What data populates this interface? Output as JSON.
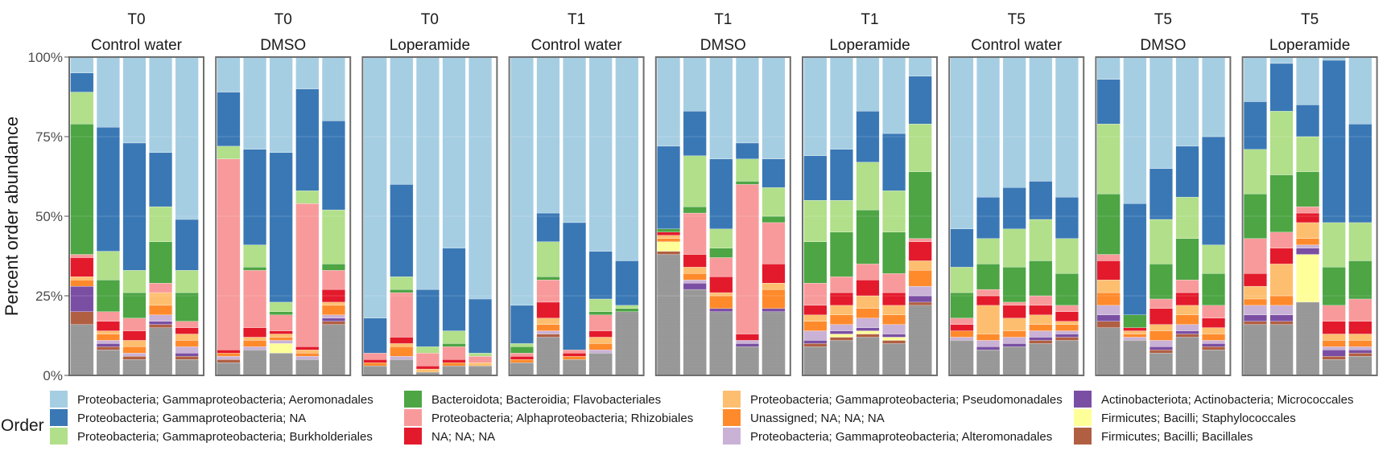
{
  "chart_data": {
    "type": "bar",
    "stacked": true,
    "ylabel": "Percent order abundance",
    "ylim": [
      0,
      100
    ],
    "y_ticks": [
      "0%",
      "25%",
      "50%",
      "75%",
      "100%"
    ],
    "y_tick_values": [
      0,
      25,
      50,
      75,
      100
    ],
    "legend_title": "Order",
    "legend_position": "bottom",
    "grid": true,
    "orders": [
      {
        "name": "Proteobacteria; Gammaproteobacteria; Aeromonadales",
        "color": "#a6cee3"
      },
      {
        "name": "Proteobacteria; Gammaproteobacteria; NA",
        "color": "#3a78b5"
      },
      {
        "name": "Proteobacteria; Gammaproteobacteria; Burkholderiales",
        "color": "#b2df8a"
      },
      {
        "name": "Bacteroidota; Bacteroidia; Flavobacteriales",
        "color": "#4da544"
      },
      {
        "name": "Proteobacteria; Alphaproteobacteria; Rhizobiales",
        "color": "#f89a9b"
      },
      {
        "name": "NA; NA; NA",
        "color": "#e31a2c"
      },
      {
        "name": "Proteobacteria; Gammaproteobacteria; Pseudomonadales",
        "color": "#fdbf6f"
      },
      {
        "name": "Unassigned; NA; NA; NA",
        "color": "#ff8a2c"
      },
      {
        "name": "Proteobacteria; Gammaproteobacteria; Alteromonadales",
        "color": "#cab2d6"
      },
      {
        "name": "Actinobacteriota; Actinobacteria; Micrococcales",
        "color": "#7a4fa3"
      },
      {
        "name": "Firmicutes; Bacilli; Staphylococcales",
        "color": "#ffff99"
      },
      {
        "name": "Firmicutes; Bacilli; Bacillales",
        "color": "#b15f43"
      }
    ],
    "other_color": "#9a9a9a",
    "facets": [
      {
        "time": "T0",
        "treatment": "Control water",
        "samples": [
          [
            5,
            6,
            10,
            41,
            1,
            6,
            1,
            2,
            0,
            8,
            0,
            4
          ],
          [
            22,
            39,
            9,
            10,
            3,
            3,
            1,
            2,
            1,
            1,
            0,
            1
          ],
          [
            27,
            40,
            7,
            8,
            4,
            3,
            2,
            2,
            1,
            0,
            0,
            1
          ],
          [
            30,
            17,
            11,
            13,
            3,
            0,
            4,
            3,
            2,
            1,
            0,
            1
          ],
          [
            51,
            16,
            7,
            9,
            2,
            2,
            2,
            2,
            2,
            1,
            0,
            1
          ]
        ]
      },
      {
        "time": "T0",
        "treatment": "DMSO",
        "samples": [
          [
            11,
            17,
            4,
            0,
            60,
            1,
            0,
            1,
            1,
            0,
            0,
            1
          ],
          [
            29,
            30,
            7,
            1,
            18,
            3,
            1,
            2,
            1,
            0,
            0,
            0
          ],
          [
            30,
            47,
            3,
            1,
            5,
            1,
            1,
            1,
            1,
            0,
            3,
            0
          ],
          [
            10,
            32,
            4,
            0,
            45,
            1,
            1,
            1,
            1,
            0,
            0,
            0
          ],
          [
            20,
            28,
            17,
            2,
            6,
            4,
            1,
            3,
            1,
            1,
            0,
            1
          ]
        ]
      },
      {
        "time": "T0",
        "treatment": "Loperamide",
        "samples": [
          [
            82,
            11,
            0,
            0,
            2,
            1,
            0,
            1,
            0,
            0,
            0,
            0
          ],
          [
            40,
            29,
            4,
            1,
            14,
            2,
            1,
            3,
            1,
            0,
            0,
            0
          ],
          [
            73,
            18,
            2,
            0,
            4,
            1,
            1,
            0,
            0,
            0,
            0,
            0
          ],
          [
            60,
            26,
            4,
            1,
            4,
            1,
            0,
            1,
            0,
            0,
            0,
            0
          ],
          [
            76,
            17,
            1,
            0,
            2,
            0,
            1,
            0,
            0,
            0,
            0,
            0
          ]
        ]
      },
      {
        "time": "T1",
        "treatment": "Control water",
        "samples": [
          [
            78,
            12,
            1,
            2,
            1,
            1,
            0,
            1,
            0,
            0,
            0,
            0
          ],
          [
            49,
            9,
            11,
            1,
            7,
            5,
            2,
            2,
            1,
            0,
            0,
            1
          ],
          [
            52,
            40,
            0,
            0,
            1,
            1,
            0,
            1,
            0,
            0,
            0,
            0
          ],
          [
            61,
            15,
            4,
            1,
            5,
            2,
            2,
            2,
            1,
            0,
            0,
            0
          ],
          [
            64,
            14,
            1,
            1,
            0,
            0,
            0,
            0,
            0,
            0,
            0,
            0
          ]
        ]
      },
      {
        "time": "T1",
        "treatment": "DMSO",
        "samples": [
          [
            28,
            26,
            0,
            1,
            0,
            1,
            1,
            1,
            0,
            0,
            3,
            1
          ],
          [
            17,
            14,
            16,
            2,
            13,
            4,
            2,
            2,
            1,
            2,
            0,
            0
          ],
          [
            32,
            22,
            6,
            3,
            6,
            5,
            1,
            4,
            0,
            1,
            0,
            0
          ],
          [
            27,
            5,
            7,
            1,
            47,
            2,
            0,
            0,
            1,
            1,
            0,
            0
          ],
          [
            32,
            9,
            9,
            2,
            13,
            6,
            2,
            6,
            0,
            1,
            0,
            0
          ]
        ]
      },
      {
        "time": "T1",
        "treatment": "Loperamide",
        "samples": [
          [
            31,
            14,
            13,
            13,
            7,
            3,
            2,
            3,
            3,
            1,
            0,
            1
          ],
          [
            29,
            16,
            10,
            14,
            5,
            4,
            3,
            3,
            2,
            1,
            1,
            1
          ],
          [
            17,
            16,
            15,
            17,
            5,
            5,
            4,
            3,
            3,
            1,
            1,
            1
          ],
          [
            24,
            18,
            13,
            13,
            6,
            4,
            3,
            3,
            3,
            1,
            1,
            1
          ],
          [
            6,
            15,
            15,
            21,
            1,
            6,
            3,
            5,
            3,
            2,
            0,
            1
          ]
        ]
      },
      {
        "time": "T5",
        "treatment": "Control water",
        "samples": [
          [
            54,
            12,
            8,
            8,
            2,
            2,
            0,
            2,
            1,
            0,
            0,
            0
          ],
          [
            44,
            13,
            8,
            8,
            2,
            3,
            9,
            2,
            2,
            1,
            0,
            0
          ],
          [
            41,
            13,
            12,
            11,
            1,
            4,
            4,
            2,
            2,
            1,
            0,
            0
          ],
          [
            39,
            12,
            13,
            11,
            3,
            3,
            3,
            2,
            2,
            1,
            0,
            1
          ],
          [
            44,
            13,
            11,
            10,
            2,
            3,
            1,
            2,
            1,
            1,
            0,
            1
          ]
        ]
      },
      {
        "time": "T5",
        "treatment": "DMSO",
        "samples": [
          [
            7,
            14,
            22,
            19,
            2,
            6,
            4,
            4,
            3,
            2,
            0,
            2
          ],
          [
            46,
            35,
            0,
            4,
            0,
            1,
            1,
            1,
            1,
            0,
            0,
            0
          ],
          [
            35,
            16,
            14,
            11,
            3,
            5,
            2,
            3,
            2,
            1,
            0,
            1
          ],
          [
            28,
            16,
            13,
            13,
            4,
            4,
            3,
            3,
            2,
            1,
            0,
            1
          ],
          [
            25,
            34,
            9,
            10,
            4,
            3,
            2,
            2,
            1,
            1,
            0,
            1
          ]
        ]
      },
      {
        "time": "T5",
        "treatment": "Loperamide",
        "samples": [
          [
            14,
            15,
            14,
            14,
            11,
            4,
            4,
            2,
            3,
            2,
            0,
            1
          ],
          [
            2,
            15,
            20,
            18,
            5,
            5,
            10,
            3,
            3,
            2,
            0,
            1
          ],
          [
            15,
            10,
            11,
            11,
            2,
            3,
            5,
            2,
            1,
            2,
            15,
            0
          ],
          [
            1,
            51,
            14,
            12,
            5,
            4,
            2,
            2,
            1,
            2,
            0,
            1
          ],
          [
            21,
            31,
            12,
            12,
            7,
            4,
            2,
            2,
            1,
            1,
            0,
            1
          ]
        ]
      }
    ]
  }
}
